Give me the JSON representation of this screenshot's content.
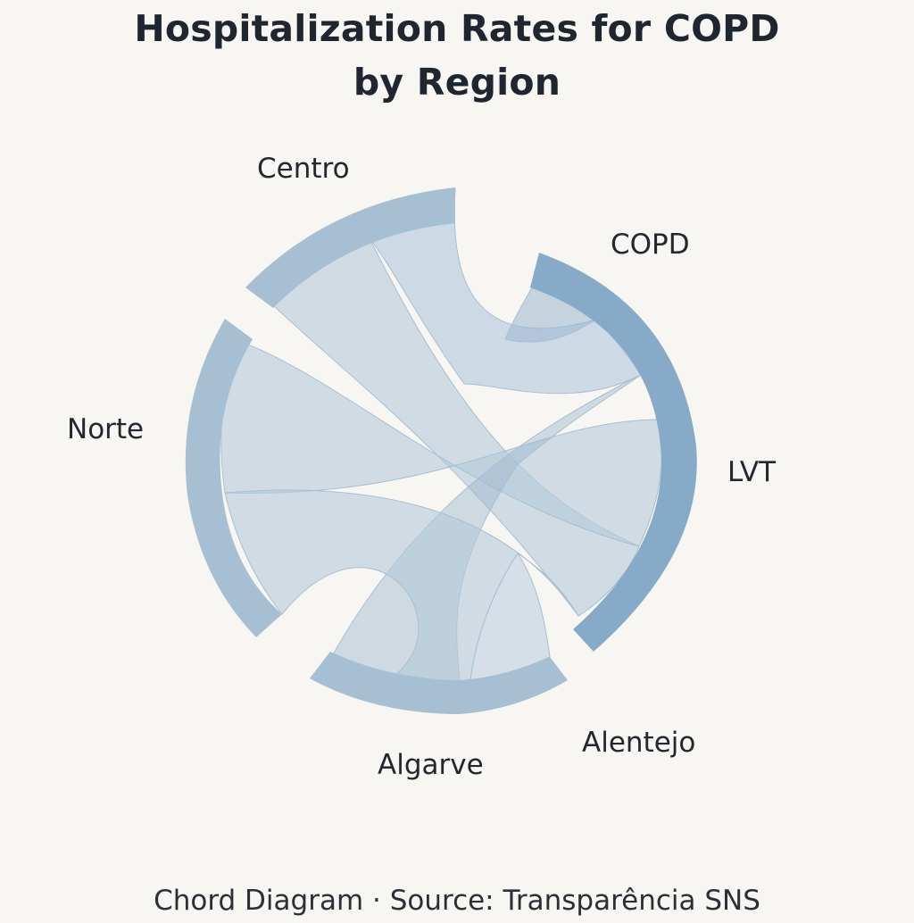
{
  "title": {
    "line1": "Hospitalization Rates for COPD",
    "line2": "by Region"
  },
  "footer": "Chord Diagram · Source: Transparência SNS",
  "colors": {
    "background": "#f8f6f3",
    "arc_default": "#a7bfd3",
    "arc_highlight": "#86aac7",
    "ribbon": "#b6cadb",
    "ribbon_dark": "#9bb6cd",
    "text": "#23272e"
  },
  "groups": [
    {
      "id": "centro",
      "label": "Centro"
    },
    {
      "id": "copd",
      "label": "COPD"
    },
    {
      "id": "lvt",
      "label": "LVT"
    },
    {
      "id": "alentejo",
      "label": "Alentejo"
    },
    {
      "id": "algarve",
      "label": "Algarve"
    },
    {
      "id": "norte",
      "label": "Norte"
    }
  ]
}
